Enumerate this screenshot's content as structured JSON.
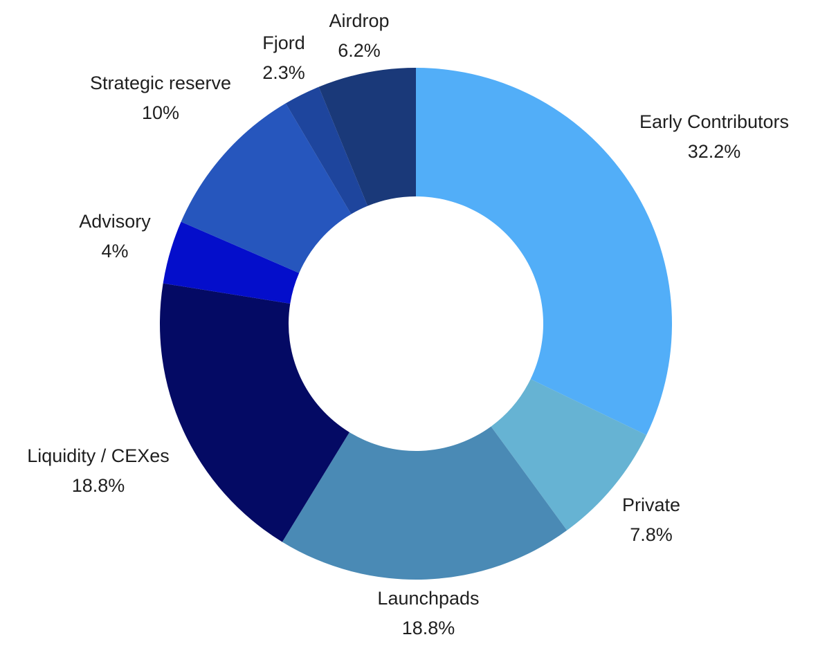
{
  "chart_data": {
    "type": "pie",
    "donut": true,
    "start": "top",
    "direction": "clockwise",
    "slices": [
      {
        "label": "Early Contributors",
        "value": 32.2,
        "value_label": "32.2%",
        "color": "#52aef8"
      },
      {
        "label": "Private",
        "value": 7.8,
        "value_label": "7.8%",
        "color": "#66b3d3"
      },
      {
        "label": "Launchpads",
        "value": 18.8,
        "value_label": "18.8%",
        "color": "#4a8ab5"
      },
      {
        "label": "Liquidity / CEXes",
        "value": 18.8,
        "value_label": "18.8%",
        "color": "#040a64"
      },
      {
        "label": "Advisory",
        "value": 4,
        "value_label": "4%",
        "color": "#040ecb"
      },
      {
        "label": "Strategic reserve",
        "value": 10,
        "value_label": "10%",
        "color": "#2656bd"
      },
      {
        "label": "Fjord",
        "value": 2.3,
        "value_label": "2.3%",
        "color": "#1e459d"
      },
      {
        "label": "Airdrop",
        "value": 6.2,
        "value_label": "6.2%",
        "color": "#1a3979"
      }
    ]
  }
}
